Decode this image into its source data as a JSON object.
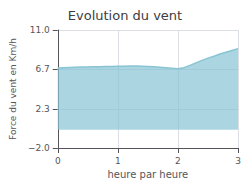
{
  "chart_data": {
    "type": "area",
    "title": "Evolution du vent",
    "xlabel": "heure par heure",
    "ylabel": "Force du vent en Km/h",
    "x": [
      0.0,
      0.1,
      0.2,
      0.3,
      0.4,
      0.5,
      0.6,
      0.7,
      0.8,
      0.9,
      1.0,
      1.1,
      1.2,
      1.3,
      1.4,
      1.5,
      1.6,
      1.7,
      1.8,
      1.9,
      2.0,
      2.1,
      2.2,
      2.3,
      2.4,
      2.5,
      2.6,
      2.7,
      2.8,
      2.9,
      3.0
    ],
    "values": [
      6.8,
      6.84,
      6.87,
      6.9,
      6.92,
      6.93,
      6.95,
      6.96,
      6.97,
      6.98,
      7.0,
      7.02,
      7.04,
      7.03,
      7.01,
      6.98,
      6.94,
      6.9,
      6.85,
      6.8,
      6.72,
      6.85,
      7.1,
      7.38,
      7.65,
      7.9,
      8.1,
      8.35,
      8.55,
      8.75,
      8.95
    ],
    "color": "#88c4d4",
    "xlim": [
      0,
      3
    ],
    "xticks": [
      0,
      1,
      2,
      3
    ],
    "ylim": [
      -2.0,
      11.0
    ],
    "yticks": [
      {
        "value": -2.0,
        "label": "−2.0"
      },
      2.3,
      6.7,
      {
        "value": 11.0,
        "label": "11.0"
      }
    ],
    "grid": true
  }
}
